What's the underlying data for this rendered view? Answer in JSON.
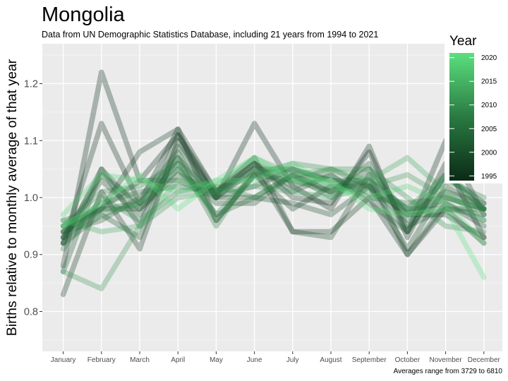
{
  "chart_data": {
    "type": "line",
    "title": "Mongolia",
    "subtitle": "Data from UN Demographic Statistics Database, including 21 years from 1994 to 2021",
    "xlabel": "",
    "ylabel": "Births relative to monthly average of that year",
    "caption": "Averages range from 3729 to 6810",
    "categories": [
      "January",
      "February",
      "March",
      "April",
      "May",
      "June",
      "July",
      "August",
      "September",
      "October",
      "November",
      "December"
    ],
    "ylim": [
      0.73,
      1.27
    ],
    "yticks": [
      "0.8",
      "0.9",
      "1.0",
      "1.1",
      "1.2"
    ],
    "legend": {
      "title": "Year",
      "position": "right-top",
      "range": [
        1994,
        2021
      ],
      "ticks": [
        "1995",
        "2000",
        "2005",
        "2010",
        "2015",
        "2020"
      ],
      "color_low": "#0b2a16",
      "color_high": "#5be07e"
    },
    "grid": true,
    "background": "#ebebeb",
    "series": [
      {
        "year": 1994,
        "values": [
          0.88,
          1.22,
          1.03,
          1.11,
          1.0,
          1.13,
          1.02,
          0.98,
          1.09,
          0.93,
          1.06,
          0.93
        ]
      },
      {
        "year": 1995,
        "values": [
          0.92,
          1.13,
          0.99,
          1.12,
          1.01,
          1.06,
          1.0,
          0.99,
          1.08,
          0.94,
          1.1,
          0.97
        ]
      },
      {
        "year": 1996,
        "values": [
          0.83,
          1.01,
          0.91,
          1.1,
          1.0,
          1.05,
          0.94,
          0.94,
          1.0,
          0.9,
          0.98,
          0.92
        ]
      },
      {
        "year": 1997,
        "values": [
          0.94,
          0.98,
          1.08,
          1.12,
          0.96,
          1.04,
          0.98,
          1.02,
          1.02,
          0.97,
          0.97,
          0.93
        ]
      },
      {
        "year": 1998,
        "values": [
          0.92,
          1.05,
          0.95,
          1.11,
          1.01,
          1.07,
          0.94,
          0.93,
          1.04,
          0.9,
          0.99,
          0.95
        ]
      },
      {
        "year": 1999,
        "values": [
          0.93,
          1.03,
          0.97,
          1.07,
          1.0,
          1.0,
          0.99,
          0.97,
          1.02,
          0.91,
          1.02,
          0.98
        ]
      },
      {
        "year": 2000,
        "values": [
          0.93,
          0.98,
          0.98,
          1.05,
          0.99,
          0.99,
          1.04,
          1.01,
          1.06,
          0.95,
          0.98,
          0.98
        ]
      },
      {
        "year": 2001,
        "values": [
          0.92,
          0.97,
          0.93,
          1.09,
          1.0,
          1.06,
          1.01,
          1.04,
          0.99,
          0.94,
          1.04,
          0.99
        ]
      },
      {
        "year": 2002,
        "values": [
          0.87,
          1.05,
          0.98,
          1.04,
          1.01,
          1.06,
          1.03,
          1.05,
          1.02,
          0.96,
          1.0,
          0.98
        ]
      },
      {
        "year": 2003,
        "values": [
          0.94,
          0.96,
          1.0,
          1.08,
          0.96,
          1.04,
          1.03,
          1.01,
          1.05,
          0.97,
          1.01,
          0.99
        ]
      },
      {
        "year": 2004,
        "values": [
          0.95,
          0.98,
          1.03,
          1.03,
          1.0,
          1.02,
          1.05,
          1.03,
          1.02,
          0.94,
          1.04,
          0.98
        ]
      },
      {
        "year": 2005,
        "values": [
          0.93,
          1.04,
          0.99,
          1.06,
          0.97,
          1.0,
          1.04,
          1.01,
          1.03,
          0.98,
          0.98,
          0.97
        ]
      },
      {
        "year": 2006,
        "values": [
          0.94,
          0.99,
          1.01,
          1.02,
          1.01,
          1.05,
          1.02,
          1.04,
          1.0,
          0.99,
          1.0,
          0.98
        ]
      },
      {
        "year": 2007,
        "values": [
          0.96,
          0.98,
          0.99,
          1.07,
          0.95,
          1.05,
          1.05,
          1.03,
          1.03,
          0.98,
          0.99,
          0.96
        ]
      },
      {
        "year": 2008,
        "values": [
          0.91,
          1.0,
          0.96,
          1.01,
          1.02,
          1.0,
          1.04,
          1.0,
          1.04,
          0.97,
          1.03,
          1.0
        ]
      },
      {
        "year": 2009,
        "values": [
          0.95,
          1.01,
          1.02,
          1.06,
          1.01,
          1.04,
          1.05,
          1.02,
          1.01,
          0.98,
          1.04,
          0.98
        ]
      },
      {
        "year": 2010,
        "values": [
          0.95,
          0.97,
          0.99,
          1.05,
          0.97,
          1.04,
          1.06,
          1.05,
          1.05,
          1.0,
          0.95,
          0.94
        ]
      },
      {
        "year": 2011,
        "values": [
          0.87,
          0.84,
          0.95,
          1.0,
          1.01,
          1.02,
          1.01,
          1.0,
          1.02,
          1.04,
          1.0,
          0.98
        ]
      },
      {
        "year": 2013,
        "values": [
          0.96,
          0.94,
          0.95,
          1.03,
          1.02,
          1.07,
          1.04,
          1.05,
          1.03,
          1.07,
          1.01,
          0.96
        ]
      },
      {
        "year": 2019,
        "values": [
          0.97,
          1.04,
          1.03,
          1.01,
          1.03,
          1.03,
          1.06,
          1.02,
          1.0,
          1.02,
          0.99,
          0.92
        ]
      },
      {
        "year": 2021,
        "values": [
          0.95,
          0.99,
          1.04,
          0.98,
          1.03,
          1.07,
          1.03,
          1.03,
          0.98,
          0.97,
          0.98,
          0.86
        ]
      }
    ]
  }
}
